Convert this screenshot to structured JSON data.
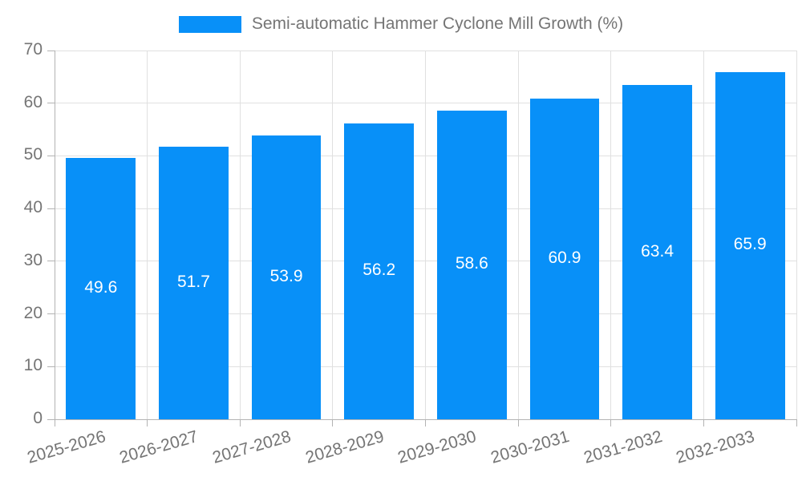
{
  "chart_data": {
    "type": "bar",
    "title": "Semi-automatic Hammer Cyclone Mill Growth (%)",
    "categories": [
      "2025-2026",
      "2026-2027",
      "2027-2028",
      "2028-2029",
      "2029-2030",
      "2030-2031",
      "2031-2032",
      "2032-2033"
    ],
    "values": [
      49.6,
      51.7,
      53.9,
      56.2,
      58.6,
      60.9,
      63.4,
      65.9
    ],
    "xlabel": "",
    "ylabel": "",
    "ylim": [
      0,
      70
    ],
    "ytick_step": 10,
    "ytick_labels": [
      "0",
      "10",
      "20",
      "30",
      "40",
      "50",
      "60",
      "70"
    ],
    "grid": true,
    "legend_position": "top",
    "colors": {
      "bar": "#0890f8",
      "value_label": "#ffffff",
      "axis_label": "#757575",
      "grid_line": "#e0e0e0",
      "axis_line": "#b3b3b3"
    }
  }
}
